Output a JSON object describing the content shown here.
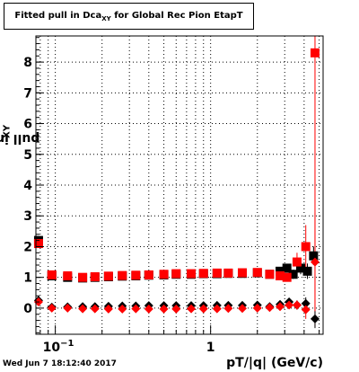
{
  "title": {
    "prefix": "Fitted pull in Dca",
    "sub": "XY",
    "suffix": " for Global Rec Pion EtapT"
  },
  "ylabel": {
    "main": "pull in Dca",
    "sub": "XY"
  },
  "xlabel": "pT/|q| (GeV/c)",
  "timestamp": "Wed Jun  7 18:12:40 2017",
  "colors": {
    "red": "#ff0000",
    "black": "#000000"
  },
  "chart_data": {
    "type": "scatter",
    "title": "Fitted pull in DcaXY for Global Rec Pion EtapT",
    "xlabel": "pT/|q| (GeV/c)",
    "ylabel": "pull in DcaXY",
    "xscale": "log",
    "xlim": [
      0.075,
      5.3
    ],
    "ylim": [
      -0.85,
      8.85
    ],
    "grid": true,
    "x_tick_labels": [
      "10^-1",
      "1"
    ],
    "y_ticks": [
      0,
      1,
      2,
      3,
      4,
      5,
      6,
      7,
      8
    ],
    "series": [
      {
        "marker": "square",
        "color": "black",
        "x": [
          0.078,
          0.095,
          0.12,
          0.15,
          0.18,
          0.22,
          0.27,
          0.33,
          0.4,
          0.5,
          0.6,
          0.75,
          0.9,
          1.1,
          1.3,
          1.6,
          2.0,
          2.4,
          2.8,
          3.1,
          3.4,
          3.8,
          4.2,
          4.6
        ],
        "y": [
          2.2,
          1.05,
          1.0,
          0.98,
          1.0,
          1.02,
          1.04,
          1.05,
          1.07,
          1.08,
          1.1,
          1.1,
          1.12,
          1.12,
          1.13,
          1.13,
          1.15,
          1.1,
          1.2,
          1.3,
          1.1,
          1.3,
          1.2,
          1.7
        ],
        "yerr": [
          0.1,
          0.05,
          0.04,
          0.04,
          0.04,
          0.04,
          0.04,
          0.04,
          0.04,
          0.04,
          0.04,
          0.04,
          0.05,
          0.05,
          0.05,
          0.05,
          0.06,
          0.07,
          0.08,
          0.12,
          0.15,
          0.2,
          0.25,
          0.3
        ]
      },
      {
        "marker": "square",
        "color": "red",
        "x": [
          0.078,
          0.095,
          0.12,
          0.15,
          0.18,
          0.22,
          0.27,
          0.33,
          0.4,
          0.5,
          0.6,
          0.75,
          0.9,
          1.1,
          1.3,
          1.6,
          2.0,
          2.4,
          2.8,
          3.1,
          3.6,
          4.1,
          4.7
        ],
        "y": [
          2.1,
          1.08,
          1.05,
          1.0,
          1.02,
          1.04,
          1.06,
          1.07,
          1.08,
          1.1,
          1.12,
          1.12,
          1.13,
          1.14,
          1.14,
          1.15,
          1.16,
          1.1,
          1.05,
          1.0,
          1.5,
          2.0,
          8.3
        ],
        "yerr": [
          0.1,
          0.05,
          0.04,
          0.04,
          0.04,
          0.04,
          0.04,
          0.04,
          0.04,
          0.04,
          0.04,
          0.05,
          0.05,
          0.05,
          0.05,
          0.06,
          0.07,
          0.08,
          0.1,
          0.12,
          0.3,
          0.7,
          8.9
        ]
      },
      {
        "marker": "diamond",
        "color": "black",
        "x": [
          0.078,
          0.095,
          0.12,
          0.15,
          0.18,
          0.22,
          0.27,
          0.33,
          0.4,
          0.5,
          0.6,
          0.75,
          0.9,
          1.1,
          1.3,
          1.6,
          2.0,
          2.4,
          2.8,
          3.2,
          3.6,
          4.1,
          4.7
        ],
        "y": [
          0.25,
          0.03,
          0.04,
          0.05,
          0.05,
          0.06,
          0.07,
          0.07,
          0.08,
          0.08,
          0.08,
          0.08,
          0.08,
          0.09,
          0.09,
          0.09,
          0.1,
          0.05,
          0.12,
          0.2,
          0.1,
          0.15,
          -0.35
        ],
        "yerr": [
          0.05,
          0.03,
          0.03,
          0.03,
          0.03,
          0.03,
          0.03,
          0.03,
          0.03,
          0.03,
          0.03,
          0.03,
          0.04,
          0.04,
          0.04,
          0.04,
          0.05,
          0.06,
          0.07,
          0.1,
          0.15,
          0.2,
          0.3
        ]
      },
      {
        "marker": "diamond",
        "color": "red",
        "x": [
          0.078,
          0.095,
          0.12,
          0.15,
          0.18,
          0.22,
          0.27,
          0.33,
          0.4,
          0.5,
          0.6,
          0.75,
          0.9,
          1.1,
          1.3,
          1.6,
          2.0,
          2.4,
          2.8,
          3.2,
          3.6,
          4.1,
          4.7
        ],
        "y": [
          0.2,
          0.0,
          0.0,
          -0.02,
          -0.02,
          -0.03,
          -0.03,
          -0.02,
          -0.03,
          -0.03,
          -0.03,
          -0.02,
          -0.02,
          -0.02,
          -0.01,
          -0.01,
          0.0,
          0.02,
          0.05,
          0.1,
          0.1,
          -0.05,
          1.5
        ],
        "yerr": [
          0.05,
          0.03,
          0.03,
          0.03,
          0.03,
          0.03,
          0.03,
          0.03,
          0.03,
          0.03,
          0.03,
          0.03,
          0.04,
          0.04,
          0.04,
          0.04,
          0.05,
          0.06,
          0.07,
          0.1,
          0.15,
          0.3,
          1.6
        ]
      }
    ]
  }
}
